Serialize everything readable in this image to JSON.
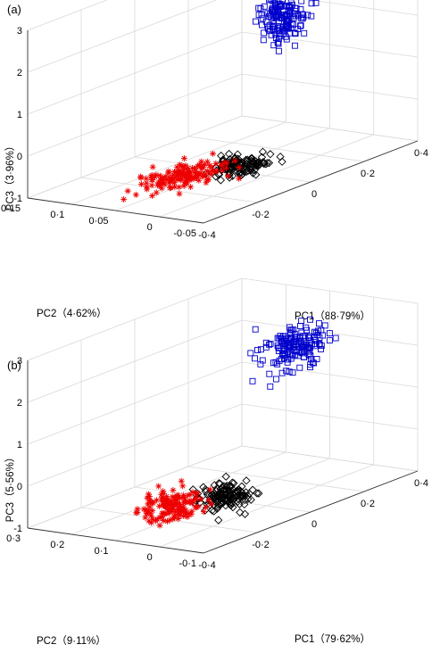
{
  "chart_data": [
    {
      "type": "scatter",
      "panel_label": "(a)",
      "xlabel": "PC1（88·79%）",
      "ylabel": "PC2（4·62%）",
      "zlabel": "PC3（3·96%）",
      "xlim": [
        -0.4,
        0.4
      ],
      "ylim": [
        -0.05,
        0.15
      ],
      "zlim": [
        -1,
        3
      ],
      "x_ticks": [
        "-0·4",
        "-0·2",
        "0",
        "0·2",
        "0·4"
      ],
      "y_ticks": [
        "-0·05",
        "0",
        "0·05",
        "0·1",
        "0·15"
      ],
      "z_ticks": [
        "-1",
        "0",
        "1",
        "2",
        "3"
      ],
      "grid": true,
      "series": [
        {
          "marker": "square",
          "color": "#0000cc",
          "center": [
            0.12,
            0.02,
            2.45
          ],
          "spread": [
            0.02,
            0.012,
            0.28
          ],
          "n": 160
        },
        {
          "marker": "diamond",
          "color": "#000000",
          "center": [
            0.0,
            0.03,
            -0.85
          ],
          "spread": [
            0.04,
            0.01,
            0.08
          ],
          "n": 130
        },
        {
          "marker": "asterisk",
          "color": "#ee0000",
          "center": [
            -0.14,
            0.05,
            -0.8
          ],
          "spread": [
            0.07,
            0.015,
            0.1
          ],
          "n": 150
        }
      ]
    },
    {
      "type": "scatter",
      "panel_label": "(b)",
      "xlabel": "PC1（79·62%）",
      "ylabel": "PC2（9·11%）",
      "zlabel": "PC3（5·56%）",
      "xlim": [
        -0.4,
        0.4
      ],
      "ylim": [
        -0.1,
        0.3
      ],
      "zlim": [
        -1,
        3
      ],
      "x_ticks": [
        "-0·4",
        "-0·2",
        "0",
        "0·2",
        "0·4"
      ],
      "y_ticks": [
        "-0·1",
        "0",
        "0·1",
        "0·2",
        "0·3"
      ],
      "z_ticks": [
        "-1",
        "0",
        "1",
        "2",
        "3"
      ],
      "grid": true,
      "series": [
        {
          "marker": "square",
          "color": "#0000cc",
          "center": [
            0.14,
            0.02,
            2.45
          ],
          "spread": [
            0.05,
            0.02,
            0.25
          ],
          "n": 160
        },
        {
          "marker": "diamond",
          "color": "#000000",
          "center": [
            -0.02,
            0.08,
            -0.85
          ],
          "spread": [
            0.04,
            0.02,
            0.12
          ],
          "n": 140
        },
        {
          "marker": "asterisk",
          "color": "#ee0000",
          "center": [
            -0.15,
            0.12,
            -0.8
          ],
          "spread": [
            0.05,
            0.025,
            0.16
          ],
          "n": 150
        }
      ]
    }
  ]
}
